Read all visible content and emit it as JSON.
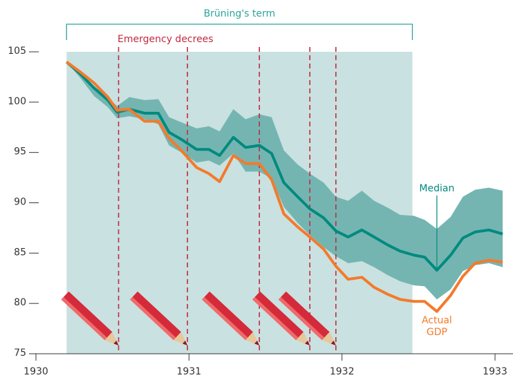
{
  "chart_data": {
    "type": "line",
    "annotations": {
      "term": "Brüning's term",
      "decrees": "Emergency decrees"
    },
    "term": [
      1930.2,
      1932.46
    ],
    "decree_dates": [
      1930.54,
      1930.99,
      1931.46,
      1931.79,
      1931.96
    ],
    "x": [
      1930.2,
      1930.29,
      1930.38,
      1930.47,
      1930.53,
      1930.61,
      1930.71,
      1930.8,
      1930.87,
      1930.95,
      1931.05,
      1931.13,
      1931.2,
      1931.29,
      1931.37,
      1931.46,
      1931.54,
      1931.62,
      1931.71,
      1931.79,
      1931.88,
      1931.96,
      1932.04,
      1932.13,
      1932.21,
      1932.3,
      1932.38,
      1932.47,
      1932.54,
      1932.62,
      1932.71,
      1932.79,
      1932.87,
      1932.96,
      1933.05
    ],
    "band": {
      "color": "#74b5b2",
      "upper": [
        104,
        103,
        101.6,
        100.5,
        99.6,
        100.5,
        100.2,
        100.3,
        98.5,
        98.0,
        97.4,
        97.6,
        97.1,
        99.3,
        98.3,
        98.8,
        98.5,
        95.2,
        93.8,
        92.9,
        92.0,
        90.6,
        90.2,
        91.2,
        90.2,
        89.5,
        88.8,
        88.7,
        88.3,
        87.4,
        88.6,
        90.6,
        91.3,
        91.5,
        91.2
      ],
      "lower": [
        104,
        102.4,
        100.6,
        99.5,
        98.4,
        98.6,
        98.3,
        97.8,
        95.7,
        95.0,
        94.0,
        94.2,
        93.7,
        94.9,
        93.1,
        93.1,
        92.4,
        89.6,
        88.0,
        86.8,
        85.6,
        84.7,
        84.0,
        84.2,
        83.6,
        82.8,
        82.2,
        81.8,
        81.7,
        80.4,
        81.4,
        83.2,
        83.8,
        84.0,
        83.6
      ]
    },
    "series": [
      {
        "name": "Median",
        "color": "#008a7e",
        "values": [
          104,
          102.8,
          101.4,
          100.2,
          99.0,
          99.3,
          98.9,
          98.9,
          97.0,
          96.3,
          95.3,
          95.3,
          94.7,
          96.5,
          95.5,
          95.7,
          94.9,
          92.0,
          90.6,
          89.4,
          88.5,
          87.2,
          86.6,
          87.3,
          86.6,
          85.8,
          85.2,
          84.8,
          84.6,
          83.3,
          84.8,
          86.5,
          87.1,
          87.3,
          86.9
        ]
      },
      {
        "name": "Actual GDP",
        "color": "#f47a2a",
        "values": [
          104,
          103,
          101.9,
          100.5,
          99.2,
          99.3,
          98.1,
          98.1,
          96.4,
          95.2,
          93.5,
          92.9,
          92.1,
          94.7,
          93.9,
          93.9,
          92.3,
          88.9,
          87.6,
          86.6,
          85.4,
          83.7,
          82.4,
          82.6,
          81.6,
          80.9,
          80.4,
          80.2,
          80.2,
          79.2,
          80.8,
          82.7,
          84.0,
          84.3,
          84.1
        ]
      }
    ],
    "xlim": [
      1930,
      1933
    ],
    "xticks": [
      1930,
      1931,
      1932,
      1933
    ],
    "ylim": [
      75,
      105
    ],
    "yticks": [
      75,
      80,
      85,
      90,
      95,
      100,
      105
    ],
    "term_color": "#c9e1e0",
    "decree_color": "#c22a3e",
    "grid": false
  }
}
